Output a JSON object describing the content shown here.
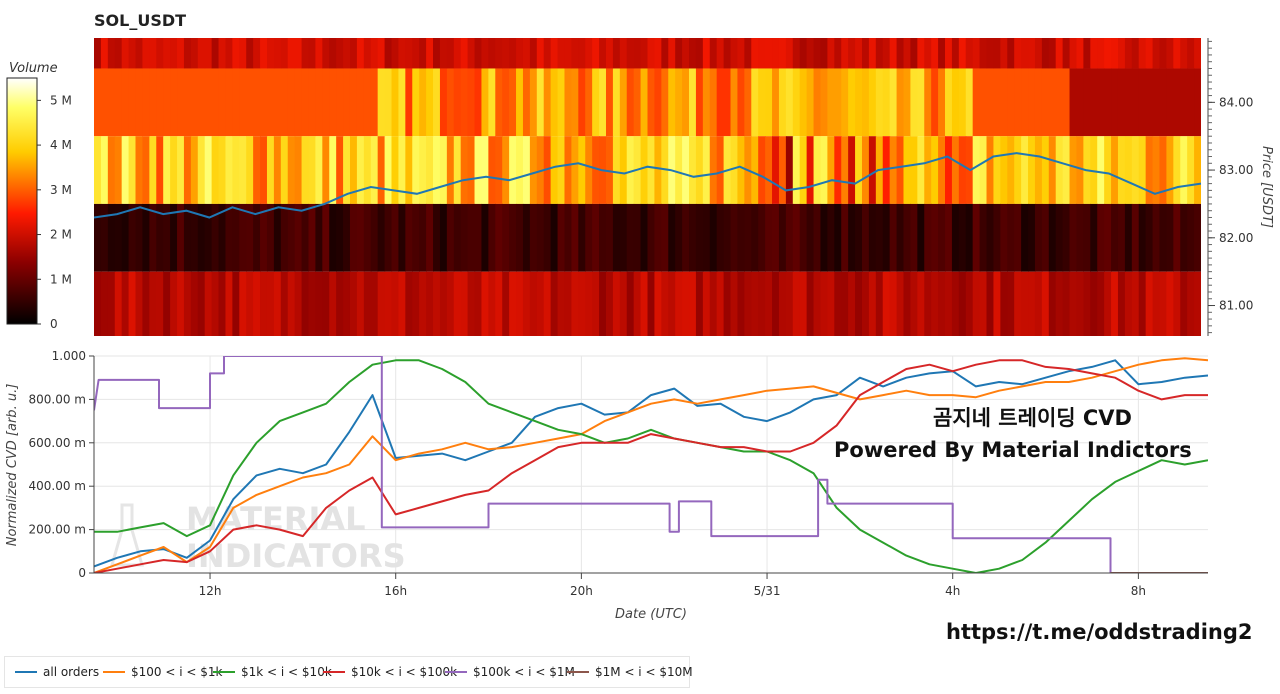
{
  "title": "SOL_USDT",
  "overlay_text": {
    "line1": "곰지네 트레이딩 CVD",
    "line2": "Powered By Material Indictors",
    "link": "https://t.me/oddstrading2"
  },
  "watermark": [
    "MATERIAL",
    "INDICATORS"
  ],
  "colors": {
    "all": "#1f77b4",
    "s100": "#ff7f0e",
    "s1k": "#2ca02c",
    "s10k": "#d62728",
    "s100k": "#9467bd",
    "s1m": "#8c564b",
    "price": "#1f77b4"
  },
  "chart_data": [
    {
      "type": "heatmap",
      "title": "SOL_USDT",
      "colorbar": {
        "label": "Volume",
        "ticks": [
          "0",
          "1 M",
          "2 M",
          "3 M",
          "4 M",
          "5 M"
        ],
        "range": [
          0,
          5500000
        ]
      },
      "y_axis": {
        "label": "Price [USDT]",
        "ticks": [
          "81.00",
          "82.00",
          "83.00",
          "84.00"
        ],
        "range": [
          80.55,
          84.95
        ],
        "side": "right"
      },
      "price_bands": [
        {
          "from": 84.5,
          "to": 84.95,
          "typical_volume_m": 2.0
        },
        {
          "from": 83.5,
          "to": 84.5,
          "typical_volume_m": 2.9
        },
        {
          "from": 82.5,
          "to": 83.5,
          "typical_volume_m": 3.9
        },
        {
          "from": 81.5,
          "to": 82.5,
          "typical_volume_m": 0.6
        },
        {
          "from": 80.55,
          "to": 81.5,
          "typical_volume_m": 1.8
        }
      ],
      "price_series": {
        "name": "price",
        "x_hours": [
          0,
          0.5,
          1,
          1.5,
          2,
          2.5,
          3,
          3.5,
          4,
          4.5,
          5,
          5.5,
          6,
          6.5,
          7,
          7.5,
          8,
          8.5,
          9,
          9.5,
          10,
          10.5,
          11,
          11.5,
          12,
          12.5,
          13,
          13.5,
          14,
          14.5,
          15,
          15.5,
          16,
          16.5,
          17,
          17.5,
          18,
          18.5,
          19,
          19.5,
          20,
          20.5,
          21,
          21.5,
          22,
          22.5,
          23,
          23.5,
          24
        ],
        "values": [
          82.3,
          82.35,
          82.45,
          82.35,
          82.4,
          82.3,
          82.45,
          82.35,
          82.45,
          82.4,
          82.5,
          82.65,
          82.75,
          82.7,
          82.65,
          82.75,
          82.85,
          82.9,
          82.85,
          82.95,
          83.05,
          83.1,
          83.0,
          82.95,
          83.05,
          83.0,
          82.9,
          82.95,
          83.05,
          82.9,
          82.7,
          82.75,
          82.85,
          82.8,
          83.0,
          83.05,
          83.1,
          83.2,
          83.0,
          83.2,
          83.25,
          83.2,
          83.1,
          83.0,
          82.95,
          82.8,
          82.65,
          82.75,
          82.8
        ]
      }
    },
    {
      "type": "line",
      "xlabel": "Date (UTC)",
      "ylabel": "Normalized CVD [arb. u.]",
      "ylim": [
        0,
        1
      ],
      "x_range_hours": [
        0,
        24
      ],
      "x_ticks": [
        {
          "at": 2.5,
          "label": "12h"
        },
        {
          "at": 6.5,
          "label": "16h"
        },
        {
          "at": 10.5,
          "label": "20h"
        },
        {
          "at": 14.5,
          "label": "5/31"
        },
        {
          "at": 18.5,
          "label": "4h"
        },
        {
          "at": 22.5,
          "label": "8h"
        }
      ],
      "y_ticks": [
        {
          "at": 0,
          "label": "0"
        },
        {
          "at": 0.2,
          "label": "200.00 m"
        },
        {
          "at": 0.4,
          "label": "400.00 m"
        },
        {
          "at": 0.6,
          "label": "600.00 m"
        },
        {
          "at": 0.8,
          "label": "800.00 m"
        },
        {
          "at": 1,
          "label": "1.000"
        }
      ],
      "x": [
        0,
        0.5,
        1,
        1.5,
        2,
        2.5,
        3,
        3.5,
        4,
        4.5,
        5,
        5.5,
        6,
        6.5,
        7,
        7.5,
        8,
        8.5,
        9,
        9.5,
        10,
        10.5,
        11,
        11.5,
        12,
        12.5,
        13,
        13.5,
        14,
        14.5,
        15,
        15.5,
        16,
        16.5,
        17,
        17.5,
        18,
        18.5,
        19,
        19.5,
        20,
        20.5,
        21,
        21.5,
        22,
        22.5,
        23,
        23.5,
        24
      ],
      "series": [
        {
          "name": "all orders",
          "color": "#1f77b4",
          "values": [
            0.03,
            0.07,
            0.1,
            0.11,
            0.07,
            0.15,
            0.34,
            0.45,
            0.48,
            0.46,
            0.5,
            0.65,
            0.82,
            0.53,
            0.54,
            0.55,
            0.52,
            0.56,
            0.6,
            0.72,
            0.76,
            0.78,
            0.73,
            0.74,
            0.82,
            0.85,
            0.77,
            0.78,
            0.72,
            0.7,
            0.74,
            0.8,
            0.82,
            0.9,
            0.86,
            0.9,
            0.92,
            0.93,
            0.86,
            0.88,
            0.87,
            0.9,
            0.93,
            0.95,
            0.98,
            0.87,
            0.88,
            0.9,
            0.91
          ]
        },
        {
          "name": "$100 < i < $1k",
          "color": "#ff7f0e",
          "values": [
            0.0,
            0.04,
            0.08,
            0.12,
            0.05,
            0.12,
            0.3,
            0.36,
            0.4,
            0.44,
            0.46,
            0.5,
            0.63,
            0.52,
            0.55,
            0.57,
            0.6,
            0.57,
            0.58,
            0.6,
            0.62,
            0.64,
            0.7,
            0.74,
            0.78,
            0.8,
            0.78,
            0.8,
            0.82,
            0.84,
            0.85,
            0.86,
            0.83,
            0.8,
            0.82,
            0.84,
            0.82,
            0.82,
            0.81,
            0.84,
            0.86,
            0.88,
            0.88,
            0.9,
            0.93,
            0.96,
            0.98,
            0.99,
            0.98
          ]
        },
        {
          "name": "$1k < i < $10k",
          "color": "#2ca02c",
          "values": [
            0.19,
            0.19,
            0.21,
            0.23,
            0.17,
            0.22,
            0.45,
            0.6,
            0.7,
            0.74,
            0.78,
            0.88,
            0.96,
            0.98,
            0.98,
            0.94,
            0.88,
            0.78,
            0.74,
            0.7,
            0.66,
            0.64,
            0.6,
            0.62,
            0.66,
            0.62,
            0.6,
            0.58,
            0.56,
            0.56,
            0.52,
            0.46,
            0.3,
            0.2,
            0.14,
            0.08,
            0.04,
            0.02,
            0.0,
            0.02,
            0.06,
            0.14,
            0.24,
            0.34,
            0.42,
            0.47,
            0.52,
            0.5,
            0.52
          ]
        },
        {
          "name": "$10k < i < $100k",
          "color": "#d62728",
          "values": [
            0.0,
            0.02,
            0.04,
            0.06,
            0.05,
            0.1,
            0.2,
            0.22,
            0.2,
            0.17,
            0.3,
            0.38,
            0.44,
            0.27,
            0.3,
            0.33,
            0.36,
            0.38,
            0.46,
            0.52,
            0.58,
            0.6,
            0.6,
            0.6,
            0.64,
            0.62,
            0.6,
            0.58,
            0.58,
            0.56,
            0.56,
            0.6,
            0.68,
            0.82,
            0.88,
            0.94,
            0.96,
            0.93,
            0.96,
            0.98,
            0.98,
            0.95,
            0.94,
            0.92,
            0.9,
            0.84,
            0.8,
            0.82,
            0.82
          ]
        },
        {
          "name": "$100k < i < $1M",
          "color": "#9467bd",
          "type": "step",
          "points": [
            [
              0,
              0.75
            ],
            [
              0.1,
              0.89
            ],
            [
              1.4,
              0.89
            ],
            [
              1.4,
              0.76
            ],
            [
              2.5,
              0.76
            ],
            [
              2.5,
              0.92
            ],
            [
              2.8,
              0.92
            ],
            [
              2.8,
              1.0
            ],
            [
              6.2,
              1.0
            ],
            [
              6.2,
              0.21
            ],
            [
              8.5,
              0.21
            ],
            [
              8.5,
              0.32
            ],
            [
              12.4,
              0.32
            ],
            [
              12.4,
              0.19
            ],
            [
              12.6,
              0.19
            ],
            [
              12.6,
              0.33
            ],
            [
              13.3,
              0.33
            ],
            [
              13.3,
              0.17
            ],
            [
              15.6,
              0.17
            ],
            [
              15.6,
              0.43
            ],
            [
              15.8,
              0.43
            ],
            [
              15.8,
              0.32
            ],
            [
              18.5,
              0.32
            ],
            [
              18.5,
              0.16
            ],
            [
              21.9,
              0.16
            ],
            [
              21.9,
              0.0
            ],
            [
              24,
              0.0
            ]
          ]
        },
        {
          "name": "$1M < i < $10M",
          "color": "#8c564b",
          "type": "step",
          "points": [
            [
              21.9,
              0.0
            ],
            [
              24,
              0.0
            ]
          ]
        }
      ],
      "legend": {
        "placement": "bottom-left"
      }
    }
  ]
}
